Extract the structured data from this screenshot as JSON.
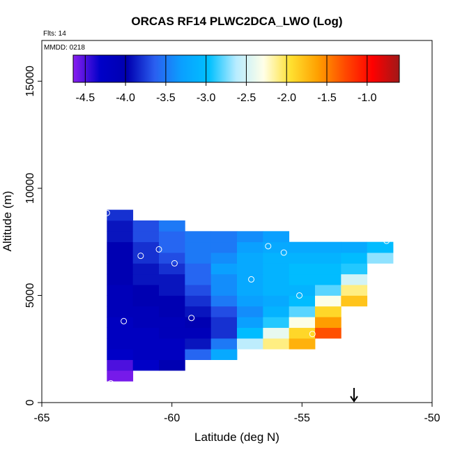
{
  "chart_data": {
    "type": "heatmap",
    "title": "ORCAS RF14 PLWC2DCA_LWO (Log)",
    "subtitle": "Flts: 14",
    "annotation": "MMDD: 0218",
    "xlabel": "Latitude (deg N)",
    "ylabel": "Altitude (m)",
    "xlim": [
      -65,
      -50
    ],
    "xticks": [
      -65,
      -60,
      -55,
      -50
    ],
    "ylim": [
      0,
      16900
    ],
    "yticks": [
      0,
      5000,
      10000,
      15000
    ],
    "x_bins": [
      -62.5,
      -61.5,
      -60.5,
      -59.5,
      -58.5,
      -57.5,
      -56.5,
      -55.5,
      -54.5,
      -53.5,
      -52.5,
      -51.5
    ],
    "y_bins": [
      1000,
      1500,
      2000,
      2500,
      3000,
      3500,
      4000,
      4500,
      5000,
      5500,
      6000,
      6500,
      7000,
      7500,
      8000,
      8500,
      9000
    ],
    "values": [
      [
        -4.6,
        null,
        null,
        null,
        null,
        null,
        null,
        null,
        null,
        null,
        null
      ],
      [
        -4.5,
        -4.3,
        -4.0,
        null,
        null,
        null,
        null,
        null,
        null,
        null,
        null
      ],
      [
        -4.3,
        -4.2,
        -4.2,
        -3.6,
        -3.2,
        null,
        null,
        null,
        null,
        null,
        null
      ],
      [
        -4.2,
        -4.2,
        -4.2,
        -3.9,
        -3.5,
        -2.6,
        -2.1,
        -1.7,
        null,
        null,
        null
      ],
      [
        -4.2,
        -4.2,
        -4.1,
        -4.1,
        -3.8,
        -3.0,
        -2.4,
        -1.9,
        -1.3,
        null,
        null
      ],
      [
        -4.2,
        -4.1,
        -4.1,
        -4.0,
        -3.8,
        -3.3,
        -2.9,
        -2.3,
        -1.6,
        null,
        null
      ],
      [
        -4.1,
        -4.1,
        -4.0,
        -3.9,
        -3.7,
        -3.4,
        -3.1,
        -2.8,
        -1.9,
        null,
        null
      ],
      [
        -4.1,
        -4.0,
        -4.0,
        -3.8,
        -3.5,
        -3.3,
        -3.2,
        -3.0,
        -2.3,
        -1.8,
        null
      ],
      [
        -4.1,
        -4.0,
        -3.9,
        -3.7,
        -3.4,
        -3.2,
        -3.1,
        -3.1,
        -2.8,
        -2.1,
        null
      ],
      [
        -4.0,
        -3.9,
        -3.9,
        -3.6,
        -3.4,
        -3.2,
        -3.1,
        -3.0,
        -3.0,
        -2.5,
        null
      ],
      [
        -4.0,
        -3.9,
        -3.8,
        -3.6,
        -3.3,
        -3.2,
        -3.1,
        -3.0,
        -3.0,
        -2.9,
        null
      ],
      [
        -4.0,
        -3.8,
        -3.7,
        -3.5,
        -3.4,
        -3.2,
        -3.1,
        -3.1,
        -3.1,
        -3.0,
        -2.7
      ],
      [
        -4.0,
        -3.8,
        -3.6,
        -3.5,
        -3.5,
        -3.3,
        -3.2,
        -3.2,
        -3.2,
        -3.2,
        -3.0
      ],
      [
        -3.9,
        -3.7,
        -3.6,
        -3.5,
        -3.5,
        -3.4,
        -3.3,
        null,
        null,
        null,
        null
      ],
      [
        -3.9,
        -3.7,
        -3.5,
        null,
        null,
        null,
        null,
        null,
        null,
        null,
        null
      ],
      [
        -3.8,
        null,
        null,
        null,
        null,
        null,
        null,
        null,
        null,
        null,
        null
      ]
    ],
    "clim": [
      -4.65,
      -0.6
    ],
    "cticks": [
      -4.5,
      {
        "value": -4.0,
        "label": "-4.0"
      },
      -3.5,
      {
        "value": -3.0,
        "label": "-3.0"
      },
      -2.5,
      {
        "value": -2.0,
        "label": "-2.0"
      },
      -1.5,
      {
        "value": -1.0,
        "label": "-1.0"
      }
    ],
    "colormap": [
      "#8a1ff0",
      "#0000c8",
      "#0000b0",
      "#2a5ff0",
      "#0aa0ff",
      "#00c0ff",
      "#b8ecff",
      "#ffffe8",
      "#ffe030",
      "#ffa000",
      "#ff4a00",
      "#ff0000",
      "#a01818"
    ],
    "markers": {
      "x": [
        -62.5,
        -61.2,
        -60.5,
        -59.9,
        -61.85,
        -59.25,
        -56.95,
        -56.3,
        -55.7,
        -55.1,
        -54.6,
        -51.75,
        -62.35
      ],
      "y": [
        8850,
        6850,
        7150,
        6500,
        3800,
        3950,
        5750,
        7300,
        7000,
        5000,
        3200,
        7550,
        900
      ]
    },
    "arrow_x": -53
  }
}
